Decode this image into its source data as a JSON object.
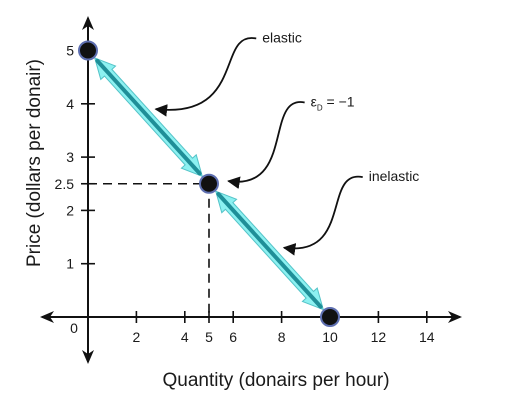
{
  "chart_data": {
    "type": "line",
    "title": "",
    "xlabel": "Quantity (donairs per hour)",
    "ylabel": "Price (dollars per donair)",
    "xlim": [
      -1.8,
      15.2
    ],
    "ylim": [
      -0.3,
      5.6
    ],
    "x_ticks": [
      2,
      4,
      5,
      6,
      8,
      10,
      12,
      14
    ],
    "y_ticks": [
      1,
      2,
      2.5,
      3,
      4,
      5
    ],
    "origin_label": "0",
    "series": [
      {
        "x": [
          0,
          5,
          10
        ],
        "y": [
          5,
          2.5,
          0
        ]
      }
    ],
    "points": [
      {
        "x": 0,
        "y": 5
      },
      {
        "x": 5,
        "y": 2.5
      },
      {
        "x": 10,
        "y": 0
      }
    ],
    "reference_lines": [
      {
        "from": [
          0,
          2.5
        ],
        "to": [
          5,
          2.5
        ]
      },
      {
        "from": [
          5,
          2.5
        ],
        "to": [
          5,
          0
        ]
      }
    ],
    "annotations": [
      {
        "id": "elastic",
        "text": "elastic",
        "text_at": [
          7.2,
          5.15
        ],
        "arrow_to": [
          2.8,
          3.9
        ]
      },
      {
        "id": "unit",
        "text_main": "ε",
        "text_sub": "D",
        "text_rest": " = −1",
        "text_at": [
          9.2,
          3.95
        ],
        "arrow_to": [
          5.8,
          2.55
        ]
      },
      {
        "id": "inelastic",
        "text": "inelastic",
        "text_at": [
          11.6,
          2.55
        ],
        "arrow_to": [
          8.1,
          1.3
        ]
      }
    ],
    "colors": {
      "band": "#8cf1f1",
      "band_edge": "#55c3c8",
      "line": "#1f8f98",
      "point_fill": "#111111",
      "point_stroke": "#5e6fb0",
      "axis": "#111111"
    }
  }
}
